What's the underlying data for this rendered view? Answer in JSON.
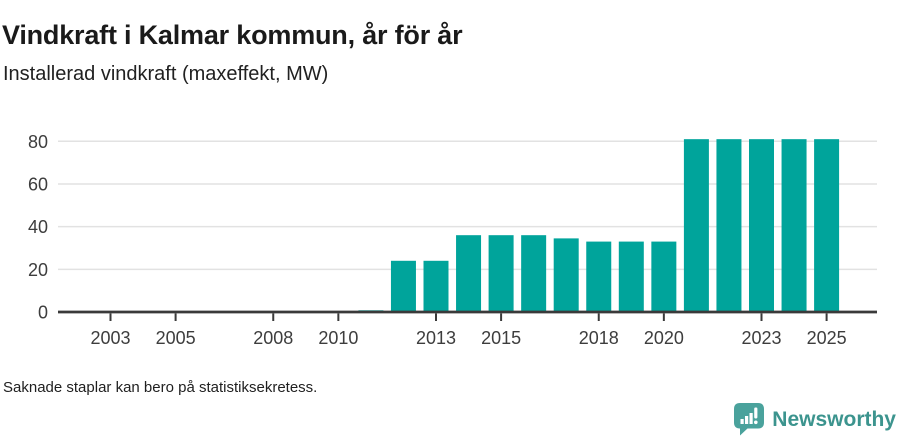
{
  "header": {
    "title": "Vindkraft i Kalmar kommun, år för år",
    "subtitle": "Installerad vindkraft (maxeffekt, MW)"
  },
  "chart_data": {
    "type": "bar",
    "title": "Vindkraft i Kalmar kommun, år för år",
    "subtitle": "Installerad vindkraft (maxeffekt, MW)",
    "xlabel": "",
    "ylabel": "Installerad vindkraft (maxeffekt, MW)",
    "x": [
      2002,
      2003,
      2004,
      2005,
      2006,
      2007,
      2008,
      2009,
      2010,
      2011,
      2012,
      2013,
      2014,
      2015,
      2016,
      2017,
      2018,
      2019,
      2020,
      2021,
      2022,
      2023,
      2024,
      2025
    ],
    "values": [
      null,
      null,
      null,
      null,
      null,
      null,
      null,
      null,
      null,
      0.8,
      24,
      24,
      36,
      36,
      36,
      34.5,
      33,
      33,
      33,
      81,
      81,
      81,
      81,
      81
    ],
    "xticks": [
      2003,
      2005,
      2008,
      2010,
      2013,
      2015,
      2018,
      2020,
      2023,
      2025
    ],
    "yticks": [
      0,
      20,
      40,
      60,
      80
    ],
    "ylim": [
      0,
      84
    ],
    "grid": "horizontal",
    "legend": "none",
    "missing_note": "Saknade staplar kan bero på statistiksekretess."
  },
  "footer": {
    "note": "Saknade staplar kan bero på statistiksekretess.",
    "logo_text": "Newsworthy"
  },
  "theme": {
    "bar_color": "#00a49b",
    "axis_color": "#3a3a3a",
    "grid_color": "#e2e2e2",
    "tick_label_color": "#3d3d3d",
    "logo_icon_color": "#4aa29c",
    "logo_text_color": "#3c948e"
  }
}
